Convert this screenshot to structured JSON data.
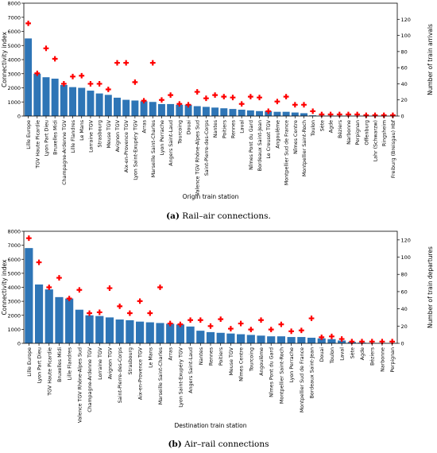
{
  "chart_data": [
    {
      "type": "bar",
      "subtype": "bar-with-secondary-scatter",
      "xlabel": "Origin train station",
      "ylabel": "Connectivity index",
      "y2label": "Number of train arrivals",
      "ylim": [
        0,
        8000
      ],
      "yticks": [
        0,
        1000,
        2000,
        3000,
        4000,
        5000,
        6000,
        7000,
        8000
      ],
      "y2lim": [
        0,
        140
      ],
      "y2ticks": [
        0,
        20,
        40,
        60,
        80,
        100,
        120
      ],
      "bar_color": "#2e75b6",
      "marker_color": "#ff0000",
      "marker": "plus",
      "categories": [
        "Lille Europe",
        "TGV Haute Picardie",
        "Lyon Part Dieu",
        "Bruxelles Midi",
        "Champagne-Ardenne TGV",
        "Lille Flandres",
        "Le Mans",
        "Lorraine TGV",
        "Strasbourg",
        "Meuse TGV",
        "Avignon TGV",
        "Aix-en-Provence TGV",
        "Lyon Saint-Exupéry TGV",
        "Arras",
        "Marseille Saint-Charles",
        "Lyon Perrache",
        "Angers Saint-Laud",
        "Tourcoing",
        "Douai",
        "Valence TGV Rhône-Alpes Sud",
        "Saint-Pierre-des-Corps",
        "Nantes",
        "Poitiers",
        "Rennes",
        "Laval",
        "Nîmes Pont du Gard",
        "Bordeaux Saint-Jean",
        "Le Creusot TGV",
        "Angoulême",
        "Montpellier Sud de France",
        "Nîmes Centre",
        "Montpellier Saint-Roch",
        "Toulon",
        "Sète",
        "Agde",
        "Béziers",
        "Narbonne",
        "Perpignan",
        "Offenburg",
        "Lahr (Schwarzw)",
        "Ringsheim",
        "Freiburg (Breisgau) Hbf"
      ],
      "series": [
        {
          "axis": "left",
          "values": [
            5500,
            3000,
            2750,
            2650,
            2200,
            2050,
            2000,
            1800,
            1600,
            1500,
            1300,
            1150,
            1100,
            1050,
            1000,
            850,
            850,
            800,
            800,
            700,
            650,
            600,
            550,
            500,
            450,
            400,
            350,
            350,
            300,
            300,
            250,
            200,
            50,
            30,
            30,
            25,
            25,
            25,
            20,
            20,
            15,
            10
          ]
        },
        {
          "axis": "right",
          "values": [
            115,
            53,
            84,
            71,
            40,
            49,
            50,
            40,
            40,
            33,
            66,
            66,
            42,
            19,
            66,
            20,
            26,
            15,
            14,
            30,
            22,
            26,
            24,
            23,
            15,
            24,
            23,
            6,
            18,
            24,
            14,
            14,
            6,
            2,
            2,
            2,
            2,
            2,
            1,
            1,
            1,
            1
          ]
        }
      ],
      "caption_tag": "(a)",
      "caption_text": "Rail–air connections."
    },
    {
      "type": "bar",
      "subtype": "bar-with-secondary-scatter",
      "xlabel": "Destination train station",
      "ylabel": "Connectivity index",
      "y2label": "Number of train departures",
      "ylim": [
        0,
        8000
      ],
      "yticks": [
        0,
        1000,
        2000,
        3000,
        4000,
        5000,
        6000,
        7000,
        8000
      ],
      "y2lim": [
        0,
        130
      ],
      "y2ticks": [
        0,
        20,
        40,
        60,
        80,
        100,
        120
      ],
      "bar_color": "#2e75b6",
      "marker_color": "#ff0000",
      "marker": "plus",
      "categories": [
        "Lille Europe",
        "Lyon Part Dieu",
        "TGV Haute Picardie",
        "Bruxelles Midi",
        "Lille Flandres",
        "Valence TGV Rhône-Alpes Sud",
        "Champagne-Ardenne TGV",
        "Lorraine TGV",
        "Avignon TGV",
        "Saint-Pierre-des-Corps",
        "Strasbourg",
        "Aix-en-Provence TGV",
        "Le Mans",
        "Marseille Saint-Charles",
        "Arras",
        "Lyon Saint-Exupéry TGV",
        "Angers Saint-Laud",
        "Nantes",
        "Rennes",
        "Poitiers",
        "Meuse TGV",
        "Nîmes Centre",
        "Tourcoing",
        "Angoulême",
        "Nîmes Pont du Gard",
        "Montpellier Saint-Roch",
        "Lyon Perrache",
        "Montpellier Sud de France",
        "Bordeaux Saint-Jean",
        "Douai",
        "Toulon",
        "Laval",
        "Sète",
        "Agde",
        "Béziers",
        "Narbonne",
        "Perpignan"
      ],
      "series": [
        {
          "axis": "left",
          "values": [
            6800,
            4200,
            3850,
            3300,
            3200,
            2400,
            2000,
            1950,
            1850,
            1700,
            1650,
            1550,
            1500,
            1450,
            1400,
            1350,
            1200,
            900,
            800,
            750,
            700,
            650,
            600,
            550,
            500,
            500,
            450,
            450,
            400,
            350,
            300,
            200,
            100,
            50,
            30,
            30,
            25
          ]
        },
        {
          "axis": "right",
          "values": [
            122,
            94,
            65,
            76,
            52,
            62,
            35,
            36,
            64,
            43,
            35,
            49,
            35,
            65,
            23,
            22,
            27,
            27,
            20,
            28,
            17,
            23,
            16,
            27,
            16,
            22,
            14,
            15,
            29,
            7,
            8,
            5,
            2,
            2,
            2,
            2,
            2
          ]
        }
      ],
      "caption_tag": "(b)",
      "caption_text": "Air–rail connections"
    }
  ]
}
